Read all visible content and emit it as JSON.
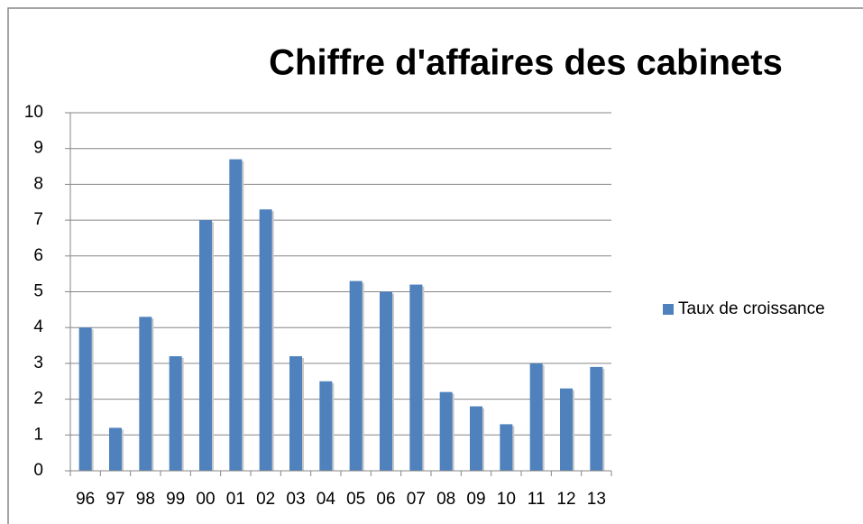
{
  "chart_data": {
    "type": "bar",
    "title": "Chiffre d'affaires des cabinets",
    "categories": [
      "96",
      "97",
      "98",
      "99",
      "00",
      "01",
      "02",
      "03",
      "04",
      "05",
      "06",
      "07",
      "08",
      "09",
      "10",
      "11",
      "12",
      "13"
    ],
    "series": [
      {
        "name": "Taux de croissance",
        "color": "#4f81bd",
        "values": [
          4.0,
          1.2,
          4.3,
          3.2,
          7.0,
          8.7,
          7.3,
          3.2,
          2.5,
          5.3,
          5.0,
          5.2,
          2.2,
          1.8,
          1.3,
          3.0,
          2.3,
          2.9
        ]
      }
    ],
    "ylim": [
      0,
      10
    ],
    "yticks": [
      0,
      1,
      2,
      3,
      4,
      5,
      6,
      7,
      8,
      9,
      10
    ],
    "grid": true,
    "legend": "right"
  }
}
